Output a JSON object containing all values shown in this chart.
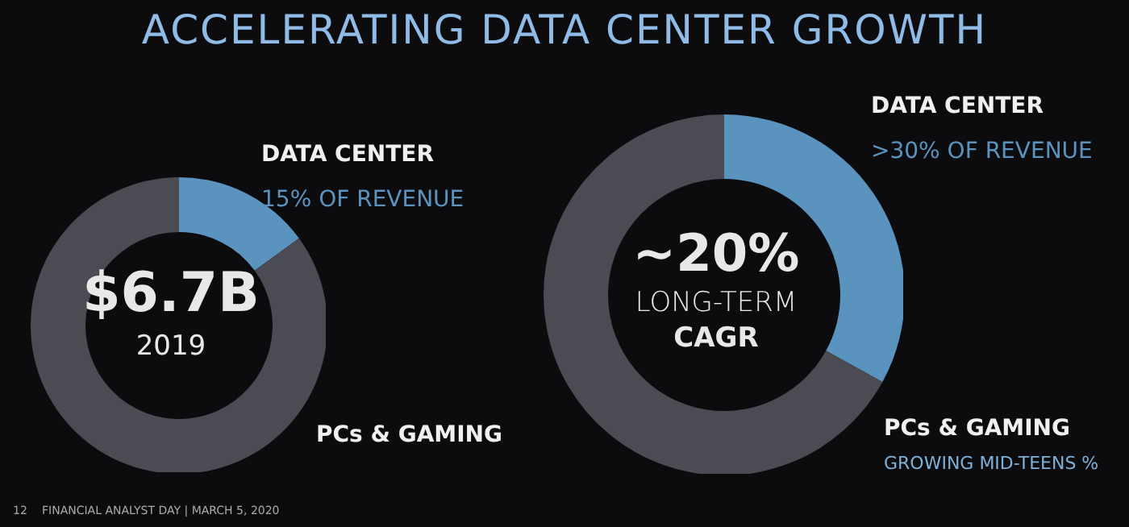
{
  "chart_data": [
    {
      "type": "donut",
      "title": "ACCELERATING DATA CENTER GROWTH",
      "categories": [
        "DATA CENTER",
        "PCs & GAMING"
      ],
      "values": [
        15,
        85
      ],
      "colors": [
        "#5b93bf",
        "#4b4b53"
      ],
      "value_labels": [
        "15% OF REVENUE",
        null
      ],
      "annotations": [
        "$6.7B",
        "2019",
        "12",
        "FINANCIAL ANALYST DAY | MARCH 5, 2020"
      ]
    },
    {
      "type": "donut",
      "categories": [
        "DATA CENTER",
        "PCs & GAMING"
      ],
      "values": [
        33,
        67
      ],
      "colors": [
        "#5b93bf",
        "#4b4b53"
      ],
      "value_labels": [
        ">30% OF REVENUE",
        null
      ],
      "annotations": [
        "~20%",
        "LONG-TERM",
        "CAGR",
        "GROWING MID-TEENS %"
      ]
    }
  ]
}
